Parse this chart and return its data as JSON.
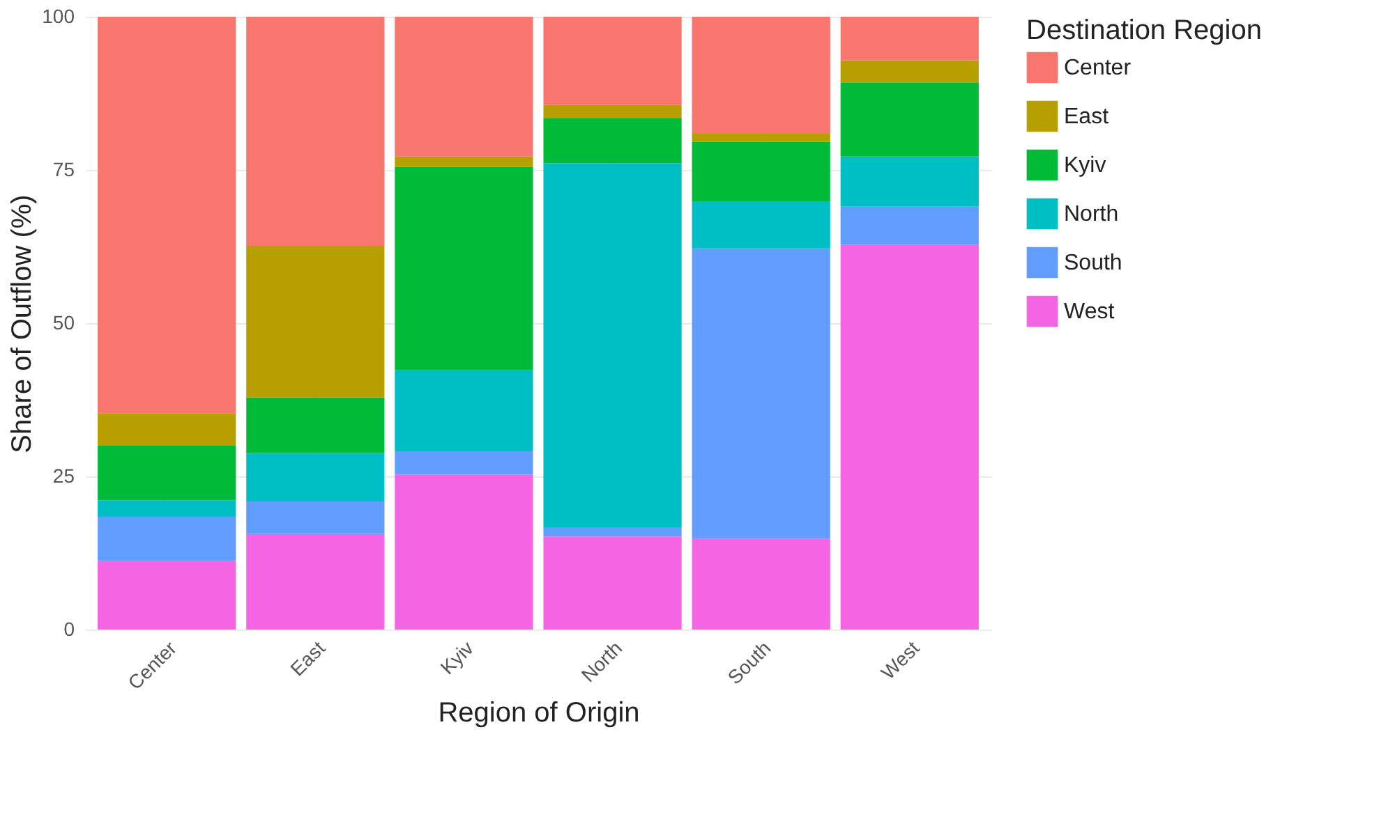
{
  "chart_data": {
    "type": "bar",
    "stacked": true,
    "xlabel": "Region of Origin",
    "ylabel": "Share of Outflow (%)",
    "legend_title": "Destination Region",
    "categories": [
      "Center",
      "East",
      "Kyiv",
      "North",
      "South",
      "West"
    ],
    "series": [
      {
        "name": "West",
        "color": "#f564e3",
        "values": [
          11.2,
          15.6,
          25.3,
          15.2,
          14.8,
          62.8
        ]
      },
      {
        "name": "South",
        "color": "#619cff",
        "values": [
          7.2,
          5.3,
          3.8,
          1.5,
          47.4,
          6.2
        ]
      },
      {
        "name": "North",
        "color": "#00bfc4",
        "values": [
          2.7,
          7.9,
          13.2,
          59.4,
          7.7,
          8.2
        ]
      },
      {
        "name": "Kyiv",
        "color": "#00ba38",
        "values": [
          8.9,
          9.1,
          33.2,
          7.3,
          9.7,
          12.1
        ]
      },
      {
        "name": "East",
        "color": "#b79f00",
        "values": [
          5.3,
          24.7,
          1.7,
          2.2,
          1.3,
          3.6
        ]
      },
      {
        "name": "Center",
        "color": "#f8766d",
        "values": [
          64.7,
          37.4,
          22.8,
          14.4,
          19.1,
          7.1
        ]
      }
    ],
    "ylim": [
      0,
      100
    ],
    "yticks": [
      0,
      25,
      50,
      75,
      100
    ],
    "grid": true,
    "legend": "right"
  }
}
